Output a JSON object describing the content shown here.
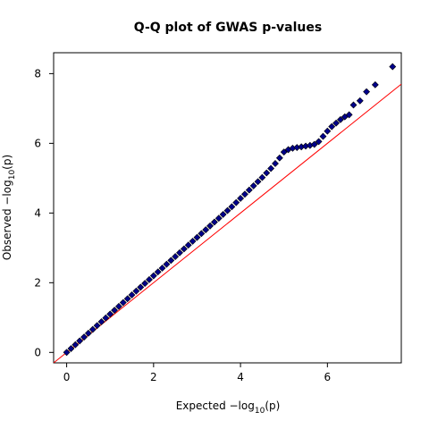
{
  "chart_data": {
    "type": "scatter",
    "title": "Q-Q plot of GWAS p-values",
    "xlabel": {
      "prefix": "Expected  −log",
      "sub": "10",
      "suffix": "(p)"
    },
    "ylabel": {
      "prefix": "Observed  −log",
      "sub": "10",
      "suffix": "(p)"
    },
    "xlim": [
      -0.3,
      7.7
    ],
    "ylim": [
      -0.3,
      8.6
    ],
    "x_ticks": [
      "0",
      "2",
      "4",
      "6"
    ],
    "y_ticks": [
      "0",
      "2",
      "4",
      "6",
      "8"
    ],
    "grid": false,
    "reference_line": {
      "slope": 1,
      "intercept": 0,
      "color": "#ff0000"
    },
    "point_color": "#00008b",
    "point_edge": "#000000",
    "series": [
      {
        "x": [
          0.0,
          0.1,
          0.2,
          0.3,
          0.4,
          0.5,
          0.6,
          0.7,
          0.8,
          0.9,
          1.0,
          1.1,
          1.2,
          1.3,
          1.4,
          1.5,
          1.6,
          1.7,
          1.8,
          1.9,
          2.0,
          2.1,
          2.2,
          2.3,
          2.4,
          2.5,
          2.6,
          2.7,
          2.8,
          2.9,
          3.0,
          3.1,
          3.2,
          3.3,
          3.4,
          3.5,
          3.6,
          3.7,
          3.8,
          3.9,
          4.0,
          4.1,
          4.2,
          4.3,
          4.4,
          4.5,
          4.6,
          4.7,
          4.8,
          4.9,
          5.0,
          5.1,
          5.2,
          5.3,
          5.4,
          5.5,
          5.6,
          5.7,
          5.8,
          5.9,
          6.0,
          6.1,
          6.2,
          6.3,
          6.4,
          6.5,
          6.6,
          6.75,
          6.9,
          7.1,
          7.5
        ],
        "y": [
          0.0,
          0.11,
          0.22,
          0.33,
          0.44,
          0.55,
          0.66,
          0.77,
          0.88,
          0.99,
          1.1,
          1.21,
          1.32,
          1.43,
          1.54,
          1.65,
          1.76,
          1.87,
          1.98,
          2.09,
          2.2,
          2.31,
          2.42,
          2.53,
          2.64,
          2.75,
          2.86,
          2.97,
          3.08,
          3.19,
          3.3,
          3.41,
          3.52,
          3.63,
          3.74,
          3.85,
          3.96,
          4.07,
          4.18,
          4.3,
          4.42,
          4.54,
          4.66,
          4.78,
          4.9,
          5.02,
          5.15,
          5.28,
          5.42,
          5.58,
          5.75,
          5.82,
          5.86,
          5.88,
          5.9,
          5.92,
          5.94,
          5.97,
          6.05,
          6.2,
          6.35,
          6.48,
          6.58,
          6.68,
          6.76,
          6.82,
          7.1,
          7.22,
          7.48,
          7.68,
          8.2
        ]
      }
    ]
  }
}
